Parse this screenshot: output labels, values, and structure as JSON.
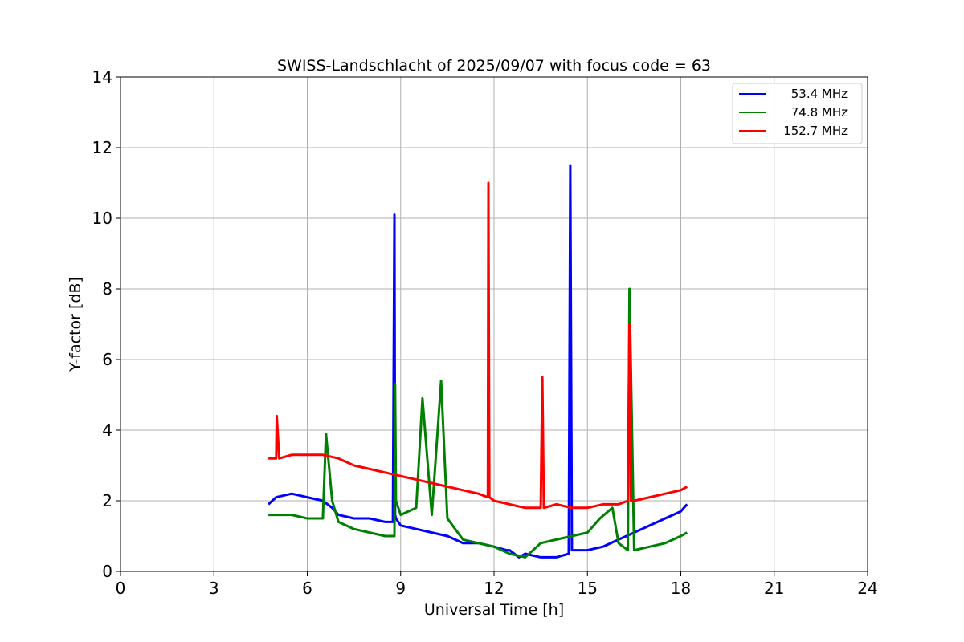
{
  "chart_data": {
    "type": "line",
    "title": "SWISS-Landschlacht of 2025/09/07 with focus code = 63",
    "xlabel": "Universal Time [h]",
    "ylabel": "Y-factor [dB]",
    "xlim": [
      0,
      24
    ],
    "ylim": [
      0,
      14
    ],
    "xticks": [
      0,
      3,
      6,
      9,
      12,
      15,
      18,
      21,
      24
    ],
    "yticks": [
      0,
      2,
      4,
      6,
      8,
      10,
      12,
      14
    ],
    "grid": true,
    "legend_position": "top-right",
    "series": [
      {
        "name": "53.4 MHz",
        "color": "#0000ff",
        "x": [
          4.75,
          5.0,
          5.5,
          6.0,
          6.5,
          6.8,
          7.0,
          7.5,
          8.0,
          8.5,
          8.75,
          8.8,
          8.82,
          8.85,
          9.0,
          9.5,
          10.0,
          10.5,
          11.0,
          11.5,
          12.0,
          12.4,
          12.5,
          12.8,
          13.0,
          13.5,
          14.0,
          14.4,
          14.45,
          14.5,
          15.0,
          15.5,
          16.0,
          16.5,
          17.0,
          17.5,
          18.0,
          18.2
        ],
        "y": [
          1.9,
          2.1,
          2.2,
          2.1,
          2.0,
          1.8,
          1.6,
          1.5,
          1.5,
          1.4,
          1.4,
          10.1,
          1.6,
          1.5,
          1.3,
          1.2,
          1.1,
          1.0,
          0.8,
          0.8,
          0.7,
          0.6,
          0.6,
          0.4,
          0.5,
          0.4,
          0.4,
          0.5,
          11.5,
          0.6,
          0.6,
          0.7,
          0.9,
          1.1,
          1.3,
          1.5,
          1.7,
          1.9
        ]
      },
      {
        "name": "74.8 MHz",
        "color": "#008000",
        "x": [
          4.75,
          5.0,
          5.5,
          6.0,
          6.5,
          6.6,
          6.8,
          7.0,
          7.5,
          8.0,
          8.5,
          8.8,
          8.82,
          8.85,
          9.0,
          9.5,
          9.7,
          10.0,
          10.3,
          10.5,
          11.0,
          11.5,
          12.0,
          12.5,
          13.0,
          13.5,
          14.0,
          14.5,
          15.0,
          15.4,
          15.8,
          16.0,
          16.3,
          16.35,
          16.5,
          17.0,
          17.5,
          18.0,
          18.2
        ],
        "y": [
          1.6,
          1.6,
          1.6,
          1.5,
          1.5,
          3.9,
          2.0,
          1.4,
          1.2,
          1.1,
          1.0,
          1.0,
          5.3,
          2.0,
          1.6,
          1.8,
          4.9,
          1.6,
          5.4,
          1.5,
          0.9,
          0.8,
          0.7,
          0.5,
          0.4,
          0.8,
          0.9,
          1.0,
          1.1,
          1.5,
          1.8,
          0.8,
          0.6,
          8.0,
          0.6,
          0.7,
          0.8,
          1.0,
          1.1
        ]
      },
      {
        "name": "152.7 MHz",
        "color": "#ff0000",
        "x": [
          4.75,
          5.0,
          5.02,
          5.1,
          5.5,
          6.0,
          6.5,
          7.0,
          7.5,
          8.0,
          8.5,
          9.0,
          9.5,
          10.0,
          10.5,
          11.0,
          11.5,
          11.8,
          11.82,
          11.85,
          12.0,
          12.5,
          13.0,
          13.5,
          13.55,
          13.6,
          14.0,
          14.5,
          15.0,
          15.5,
          16.0,
          16.3,
          16.35,
          16.4,
          16.5,
          17.0,
          17.5,
          18.0,
          18.2
        ],
        "y": [
          3.2,
          3.2,
          4.4,
          3.2,
          3.3,
          3.3,
          3.3,
          3.2,
          3.0,
          2.9,
          2.8,
          2.7,
          2.6,
          2.5,
          2.4,
          2.3,
          2.2,
          2.1,
          11.0,
          2.1,
          2.0,
          1.9,
          1.8,
          1.8,
          5.5,
          1.8,
          1.9,
          1.8,
          1.8,
          1.9,
          1.9,
          2.0,
          7.0,
          2.0,
          2.0,
          2.1,
          2.2,
          2.3,
          2.4
        ]
      }
    ]
  }
}
